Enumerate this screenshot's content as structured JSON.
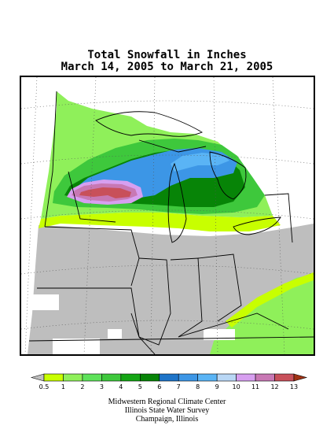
{
  "title": {
    "line1": "Total Snowfall in Inches",
    "line2": "March 14, 2005 to March 21, 2005"
  },
  "legend": {
    "ticks": [
      "0.5",
      "1",
      "2",
      "3",
      "4",
      "5",
      "6",
      "7",
      "8",
      "9",
      "10",
      "11",
      "12",
      "13"
    ],
    "colors": [
      "#c8ff00",
      "#8ff05a",
      "#5ee25a",
      "#3ec83c",
      "#14a514",
      "#078407",
      "#1e74c8",
      "#3c96e6",
      "#5ab4f5",
      "#b9d7f5",
      "#d79ff0",
      "#c878b4",
      "#c8505a",
      "#a03214"
    ],
    "under_color": "#bfbfbf",
    "over_color": "#a03214"
  },
  "credits": {
    "line1": "Midwestern Regional Climate Center",
    "line2": "Illinois State Water Survey",
    "line3": "Champaign, Illinois"
  },
  "map_colors": {
    "no_snow": "#bebebe",
    "zero": "#ffffff",
    "trace": "#c8ff00",
    "light": "#8ff05a",
    "moderate": "#3ec83c",
    "heavy": "#078407",
    "blue": "#3c96e6",
    "light_blue": "#5ab4f5",
    "pink": "#d79ff0",
    "magenta": "#c878b4",
    "red": "#c8505a"
  }
}
